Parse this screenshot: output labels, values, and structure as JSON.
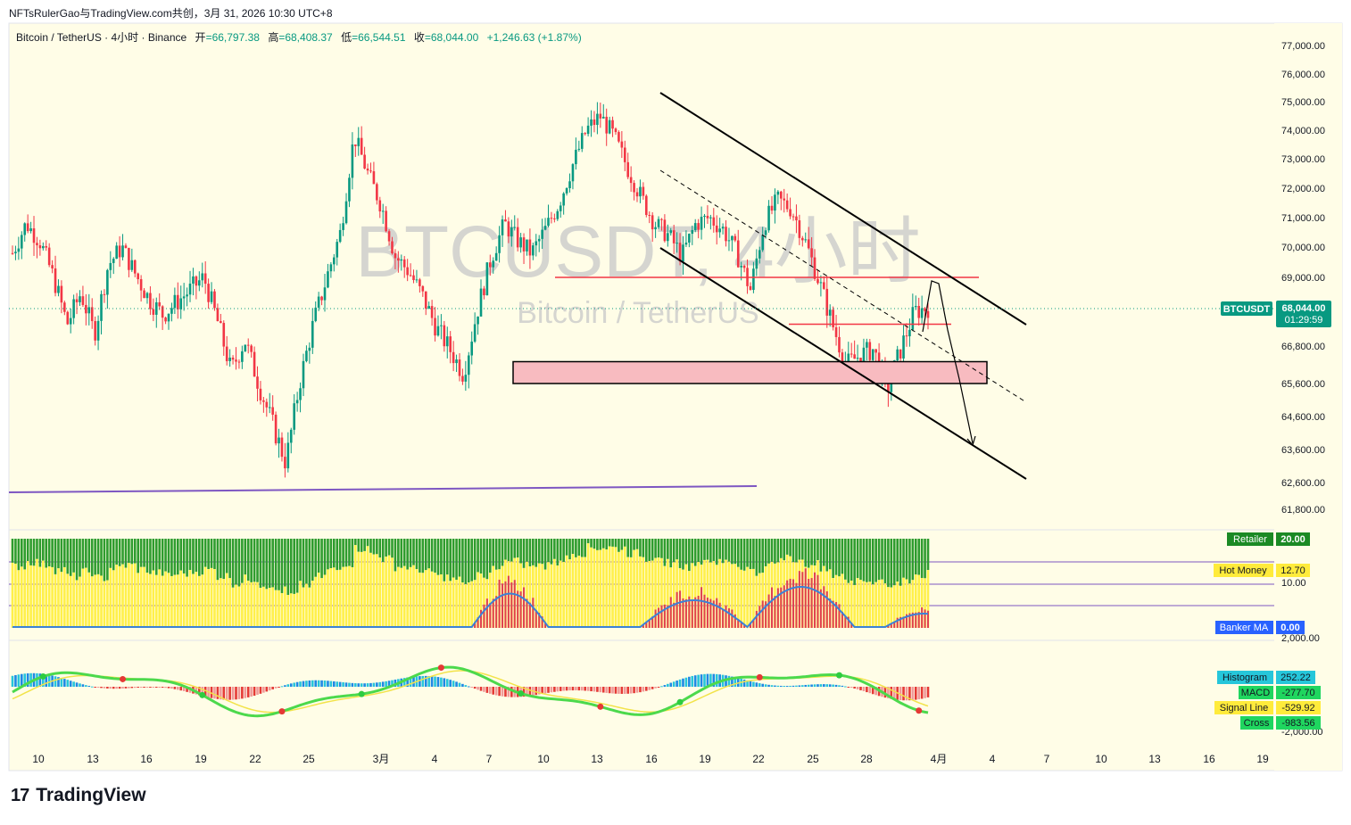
{
  "header": {
    "published": "NFTsRulerGao与TradingView.com共创，3月 31, 2026 10:30 UTC+8",
    "symbol_desc": "Bitcoin / TetherUS · 4小时 · Binance",
    "open_label": "开",
    "open": "=66,797.38",
    "high_label": "高",
    "high": "=68,408.37",
    "low_label": "低",
    "low": "=66,544.51",
    "close_label": "收",
    "close": "=68,044.00",
    "change": "+1,246.63 (+1.87%)"
  },
  "watermark": {
    "big": "BTCUSDT, 4小时",
    "small": "Bitcoin / TetherUS"
  },
  "price_tag": {
    "symbol": "BTCUSDT",
    "price": "68,044.00",
    "countdown": "01:29:59"
  },
  "brand": {
    "logo": "17",
    "name": "TradingView"
  },
  "colors": {
    "up": "#089981",
    "down": "#f23645",
    "background": "#fffde7",
    "purple": "#7e57c2",
    "level": "#f23645"
  },
  "chart_data": [
    {
      "type": "line",
      "title": "BTCUSDT 4小时 candlestick (approximate close path)",
      "x_ticks": [
        "10",
        "13",
        "16",
        "19",
        "22",
        "25",
        "3月",
        "4",
        "7",
        "10",
        "13",
        "16",
        "19",
        "22",
        "25",
        "28",
        "4月",
        "4",
        "7",
        "10",
        "13",
        "16",
        "19"
      ],
      "y_ticks": [
        "77,000.00",
        "76,000.00",
        "75,000.00",
        "74,000.00",
        "73,000.00",
        "72,000.00",
        "71,000.00",
        "70,000.00",
        "69,000.00",
        "66,800.00",
        "65,600.00",
        "64,600.00",
        "63,600.00",
        "62,600.00",
        "61,800.00"
      ],
      "series": [
        {
          "name": "BTCUSDT",
          "values": [
            69800,
            70800,
            70200,
            69000,
            67500,
            68500,
            67200,
            69400,
            70000,
            69100,
            68300,
            67800,
            68200,
            68600,
            69000,
            67600,
            66000,
            67000,
            65600,
            64400,
            63200,
            65600,
            67500,
            69000,
            70500,
            73800,
            72500,
            71400,
            69700,
            69200,
            68400,
            67400,
            66700,
            65900,
            67900,
            69600,
            70800,
            70200,
            69800,
            70600,
            71500,
            72800,
            74000,
            74500,
            73800,
            72700,
            71700,
            70800,
            70400,
            69700,
            70800,
            71000,
            70600,
            69800,
            68600,
            70800,
            71600,
            71300,
            70200,
            68900,
            67500,
            66200,
            66500,
            66700,
            65400,
            66700,
            67900,
            68044
          ]
        }
      ],
      "levels": [
        69000,
        67500
      ],
      "support_zone": [
        65600,
        66300
      ],
      "projection_target": 63700
    },
    {
      "type": "bar",
      "title": "Retailer / Hot Money / Banker MA",
      "series": [
        {
          "name": "Retailer",
          "value": "20.00"
        },
        {
          "name": "Hot Money",
          "value": "12.70"
        },
        {
          "name": "Banker MA",
          "value": "0.00"
        }
      ],
      "y_ticks": [
        "10.00"
      ]
    },
    {
      "type": "bar",
      "title": "MACD",
      "series": [
        {
          "name": "Histogram",
          "value": "252.22"
        },
        {
          "name": "MACD",
          "value": "-277.70"
        },
        {
          "name": "Signal Line",
          "value": "-529.92"
        },
        {
          "name": "Cross",
          "value": "-983.56"
        }
      ],
      "y_ticks": [
        "2,000.00",
        "-2,000.00"
      ]
    }
  ]
}
